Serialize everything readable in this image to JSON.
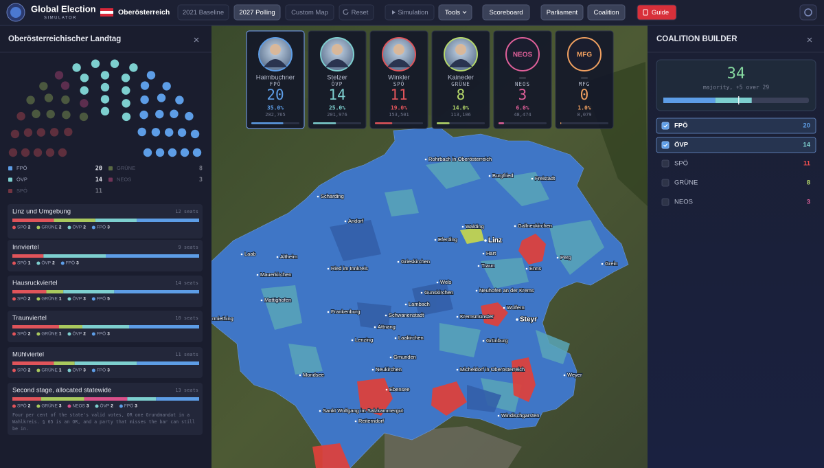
{
  "header": {
    "title": "Global Election",
    "subtitle": "SIMULATOR",
    "region": "Oberösterreich",
    "buttons": [
      "2021 Baseline",
      "2027 Polling",
      "Custom Map",
      "Reset",
      "Simulation",
      "Tools",
      "Scoreboard",
      "Parliament",
      "Coalition",
      "Guide"
    ]
  },
  "parliament": {
    "title": "Oberösterreichischer Landtag",
    "parties": [
      {
        "name": "FPÖ",
        "seats": 20,
        "color": "#5d9de6",
        "in_coalition": true
      },
      {
        "name": "GRÜNE",
        "seats": 8,
        "color": "#a9c95e",
        "in_coalition": false
      },
      {
        "name": "ÖVP",
        "seats": 14,
        "color": "#7dcfcf",
        "in_coalition": true
      },
      {
        "name": "NEOS",
        "seats": 3,
        "color": "#d9508a",
        "in_coalition": false
      },
      {
        "name": "SPÖ",
        "seats": 11,
        "color": "#e0545a",
        "in_coalition": false
      }
    ]
  },
  "regions": [
    {
      "name": "Linz und Umgebung",
      "seats": "12 seats",
      "parties": [
        {
          "name": "SPÖ",
          "seats": 2
        },
        {
          "name": "GRÜNE",
          "seats": 2
        },
        {
          "name": "ÖVP",
          "seats": 2
        },
        {
          "name": "FPÖ",
          "seats": 3
        }
      ]
    },
    {
      "name": "Innviertel",
      "seats": "9 seats",
      "parties": [
        {
          "name": "SPÖ",
          "seats": 1
        },
        {
          "name": "ÖVP",
          "seats": 2
        },
        {
          "name": "FPÖ",
          "seats": 3
        }
      ]
    },
    {
      "name": "Hausruckviertel",
      "seats": "14 seats",
      "parties": [
        {
          "name": "SPÖ",
          "seats": 2
        },
        {
          "name": "GRÜNE",
          "seats": 1
        },
        {
          "name": "ÖVP",
          "seats": 3
        },
        {
          "name": "FPÖ",
          "seats": 5
        }
      ]
    },
    {
      "name": "Traunviertel",
      "seats": "10 seats",
      "parties": [
        {
          "name": "SPÖ",
          "seats": 2
        },
        {
          "name": "GRÜNE",
          "seats": 1
        },
        {
          "name": "ÖVP",
          "seats": 2
        },
        {
          "name": "FPÖ",
          "seats": 3
        }
      ]
    },
    {
      "name": "Mühlviertel",
      "seats": "11 seats",
      "parties": [
        {
          "name": "SPÖ",
          "seats": 2
        },
        {
          "name": "GRÜNE",
          "seats": 1
        },
        {
          "name": "ÖVP",
          "seats": 3
        },
        {
          "name": "FPÖ",
          "seats": 3
        }
      ]
    },
    {
      "name": "Second stage, allocated statewide",
      "seats": "13 seats",
      "parties": [
        {
          "name": "SPÖ",
          "seats": 2
        },
        {
          "name": "GRÜNE",
          "seats": 3
        },
        {
          "name": "NEOS",
          "seats": 3
        },
        {
          "name": "ÖVP",
          "seats": 2
        },
        {
          "name": "FPÖ",
          "seats": 3
        }
      ],
      "note": "Four per cent of the state's valid votes, OR one Grundmandat in a Wahlkreis. § 65 is an OR, and a party that misses the bar can still be in."
    }
  ],
  "candidates": [
    {
      "name": "Haimbuchner",
      "party": "FPÖ",
      "seats": 20,
      "share": 35.0,
      "share_label": "35.0%",
      "votes": "282,765",
      "color": "#5d9de6"
    },
    {
      "name": "Stelzer",
      "party": "ÖVP",
      "seats": 14,
      "share": 25.0,
      "share_label": "25.0%",
      "votes": "201,976",
      "color": "#7dcfcf"
    },
    {
      "name": "Winkler",
      "party": "SPÖ",
      "seats": 11,
      "share": 19.0,
      "share_label": "19.0%",
      "votes": "153,501",
      "color": "#e0545a"
    },
    {
      "name": "Kaineder",
      "party": "GRÜNE",
      "seats": 8,
      "share": 14.0,
      "share_label": "14.0%",
      "votes": "113,106",
      "color": "#b5d86a"
    },
    {
      "name": "—",
      "party": "NEOS",
      "seats": 3,
      "share": 6.0,
      "share_label": "6.0%",
      "votes": "48,474",
      "color": "#e0609a"
    },
    {
      "name": "—",
      "party": "MFG",
      "seats": 0,
      "share": 1.0,
      "share_label": "1.0%",
      "votes": "8,079",
      "color": "#f0a060"
    }
  ],
  "map": {
    "places": [
      "Rohrbach in Oberösterreich",
      "Burgfried",
      "Freistadt",
      "Schärding",
      "Andorf",
      "Walding",
      "Gallneukirchen",
      "Eferding",
      "Linz",
      "Hart",
      "Perg",
      "Laab",
      "Altheim",
      "Grieskirchen",
      "Traun",
      "Enns",
      "Grein",
      "Ried im Innkreis",
      "Mauerkirchen",
      "Wels",
      "Neuhofen an der Krems",
      "Mattighofen",
      "Gunskirchen",
      "Lambach",
      "Wolfern",
      "Frankenburg",
      "Schwanenstadt",
      "Kremsmünster",
      "Steyr",
      "rmiething",
      "Attnang",
      "Lenzing",
      "Laakirchen",
      "Grünburg",
      "Gmunden",
      "Neukirchen",
      "Micheldorf in Oberösterreich",
      "Mondsee",
      "Weyer",
      "Ebensee",
      "Sankt Wolfgang im Salzkammergut",
      "Windischgarsten",
      "Reiterndorf"
    ]
  },
  "coalition": {
    "title": "COALITION BUILDER",
    "seats": 34,
    "caption": "majority, +5 over 29",
    "parties": [
      {
        "name": "FPÖ",
        "seats": 20,
        "checked": true,
        "color": "#5d9de6"
      },
      {
        "name": "ÖVP",
        "seats": 14,
        "checked": true,
        "color": "#7dcfcf"
      },
      {
        "name": "SPÖ",
        "seats": 11,
        "checked": false,
        "color": "#f05050"
      },
      {
        "name": "GRÜNE",
        "seats": 8,
        "checked": false,
        "color": "#b5d86a"
      },
      {
        "name": "NEOS",
        "seats": 3,
        "checked": false,
        "color": "#e0609a"
      }
    ]
  }
}
